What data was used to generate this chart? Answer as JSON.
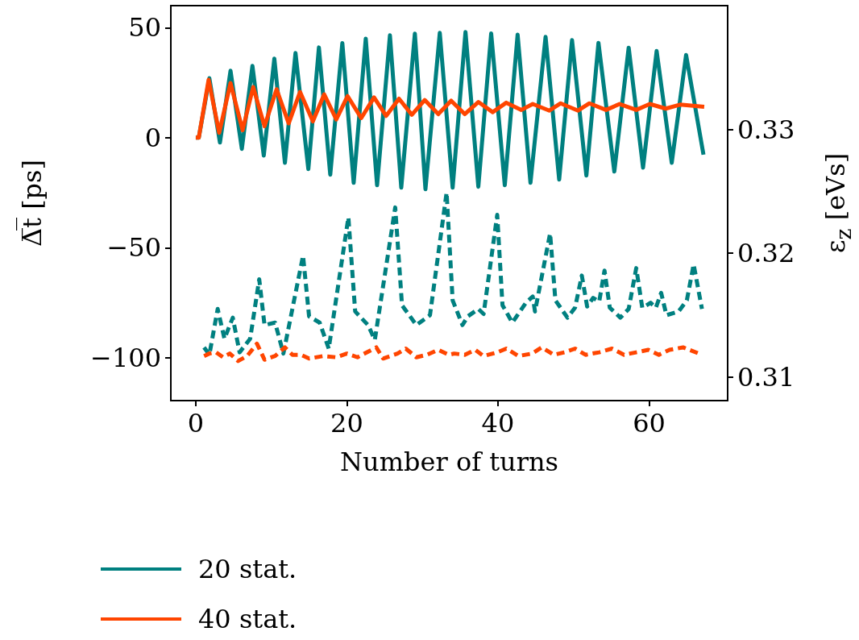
{
  "chart_data": {
    "type": "line",
    "xlabel": "Number of turns",
    "ylabel": "Δ̅t̅ [ps]",
    "y2label": "ε$_{z}$ [eVs]",
    "xlim": [
      -3.3,
      70.4
    ],
    "xticks": [
      0,
      20,
      40,
      60
    ],
    "ylim": [
      -119.5,
      60
    ],
    "yticks": [
      {
        "value": -100,
        "label": "−100"
      },
      {
        "value": -50,
        "label": "−50"
      },
      0,
      50
    ],
    "y2lim": [
      0.3081,
      0.34
    ],
    "y2ticks": [
      0.31,
      0.32,
      0.33
    ],
    "grid": false,
    "legend": "bottom",
    "marker": "none",
    "series": [
      {
        "name": "20 stat.",
        "color": "#008080",
        "line_style": "solid",
        "x": [
          0,
          0.4,
          1.8,
          3.2,
          4.6,
          6.1,
          7.5,
          9.0,
          10.4,
          11.8,
          13.2,
          14.9,
          16.3,
          17.8,
          19.4,
          20.9,
          22.5,
          24.0,
          25.7,
          27.2,
          29.0,
          30.4,
          32.3,
          34.0,
          35.7,
          37.4,
          39.1,
          40.9,
          42.6,
          44.3,
          46.3,
          48.1,
          49.8,
          51.7,
          53.3,
          55.4,
          57.3,
          59.2,
          61.0,
          63.0,
          64.9,
          67.2
        ],
        "values": [
          0,
          0,
          27,
          -2.2,
          30.4,
          -5.1,
          32.6,
          -8.1,
          35.9,
          -11.4,
          38.5,
          -14.3,
          41,
          -16.8,
          43,
          -20.5,
          45,
          -21.6,
          46.5,
          -22.7,
          47.3,
          -23.4,
          47.6,
          -22.7,
          48,
          -22.3,
          47.4,
          -21.6,
          46.8,
          -20.5,
          45.8,
          -19,
          44.3,
          -17.2,
          43.1,
          -15.4,
          40.9,
          -13.6,
          39.4,
          -11.4,
          37.6,
          -7.7
        ]
      },
      {
        "name": "40 stat.",
        "color": "#ff4500",
        "line_style": "solid",
        "x": [
          0,
          0.4,
          1.7,
          3.1,
          4.6,
          6.2,
          7.6,
          9.1,
          10.7,
          12.3,
          13.8,
          15.5,
          17.0,
          18.6,
          20.1,
          21.9,
          23.6,
          25.2,
          26.9,
          28.6,
          30.3,
          32.1,
          33.8,
          35.6,
          37.4,
          39.3,
          41.1,
          43.1,
          44.6,
          46.8,
          48.3,
          50.6,
          52.1,
          54.3,
          56.1,
          58.3,
          60.1,
          62.2,
          64.1,
          67.3
        ],
        "values": [
          0,
          0,
          26.3,
          2.2,
          24.8,
          3.4,
          23,
          5.2,
          22,
          6.5,
          20.8,
          7.4,
          19.7,
          8.3,
          18.9,
          8.9,
          18.3,
          9.9,
          17.7,
          10.4,
          17.1,
          10.7,
          16.8,
          10.7,
          16.2,
          11.6,
          15.9,
          12.6,
          15.3,
          12.3,
          15.6,
          12.3,
          15.6,
          12.6,
          15.3,
          12.6,
          15.3,
          13.2,
          15.0,
          14.0
        ]
      },
      {
        "color": "#008080",
        "line_style": "dashed",
        "axis": "y2",
        "x": [
          1.1,
          1.8,
          2.9,
          3.8,
          4.9,
          5.8,
          7.2,
          8.4,
          9.1,
          10.5,
          11.6,
          14.2,
          15.0,
          16.4,
          17.6,
          20.2,
          21.1,
          22.8,
          23.7,
          26.4,
          27.3,
          29.2,
          31.0,
          33.2,
          34.0,
          35.3,
          36.0,
          37.4,
          38.1,
          39.9,
          40.6,
          41.9,
          43.7,
          44.6,
          44.9,
          46.9,
          47.6,
          49.2,
          50.2,
          51.1,
          51.8,
          52.6,
          53.4,
          54.1,
          54.8,
          56.2,
          57.3,
          58.3,
          59.1,
          60.2,
          60.9,
          61.6,
          62.3,
          63.9,
          65.0,
          65.9,
          67.0
        ],
        "values": [
          0.3124,
          0.3118,
          0.3155,
          0.3131,
          0.3148,
          0.312,
          0.3131,
          0.3179,
          0.3142,
          0.3144,
          0.3119,
          0.3198,
          0.3149,
          0.3144,
          0.3123,
          0.3229,
          0.3153,
          0.3142,
          0.313,
          0.3237,
          0.3158,
          0.3142,
          0.315,
          0.3249,
          0.3162,
          0.3142,
          0.3149,
          0.3155,
          0.3151,
          0.3231,
          0.3158,
          0.3144,
          0.316,
          0.3165,
          0.3153,
          0.3216,
          0.3162,
          0.3148,
          0.3156,
          0.3182,
          0.3157,
          0.3164,
          0.3161,
          0.3186,
          0.3156,
          0.3148,
          0.3155,
          0.3188,
          0.3156,
          0.316,
          0.3156,
          0.3168,
          0.315,
          0.3153,
          0.3162,
          0.3191,
          0.3155
        ]
      },
      {
        "color": "#ff4500",
        "line_style": "dashed",
        "axis": "y2",
        "x": [
          1.1,
          1.8,
          2.7,
          3.6,
          4.5,
          5.6,
          6.8,
          8.1,
          9.1,
          10.5,
          11.8,
          12.8,
          13.9,
          15.0,
          16.9,
          18.6,
          20.0,
          21.4,
          23.9,
          24.8,
          26.7,
          27.8,
          29.2,
          30.6,
          32.1,
          33.5,
          34.2,
          35.6,
          37.0,
          38.1,
          39.9,
          41.1,
          42.7,
          44.5,
          45.8,
          47.4,
          48.8,
          50.2,
          51.6,
          53.4,
          55.1,
          56.7,
          58.3,
          59.9,
          61.3,
          62.7,
          64.5,
          66.6
        ],
        "values": [
          0.3117,
          0.3119,
          0.312,
          0.3116,
          0.3119,
          0.3113,
          0.3117,
          0.3127,
          0.3114,
          0.3117,
          0.3124,
          0.3118,
          0.3118,
          0.3115,
          0.3117,
          0.3116,
          0.3119,
          0.3116,
          0.3124,
          0.3115,
          0.3119,
          0.3123,
          0.3116,
          0.3118,
          0.3122,
          0.3118,
          0.3119,
          0.3118,
          0.3122,
          0.3117,
          0.312,
          0.3123,
          0.3117,
          0.3119,
          0.3124,
          0.3118,
          0.312,
          0.3123,
          0.3118,
          0.312,
          0.3123,
          0.3118,
          0.312,
          0.3122,
          0.3118,
          0.3122,
          0.3124,
          0.3119
        ]
      }
    ]
  }
}
